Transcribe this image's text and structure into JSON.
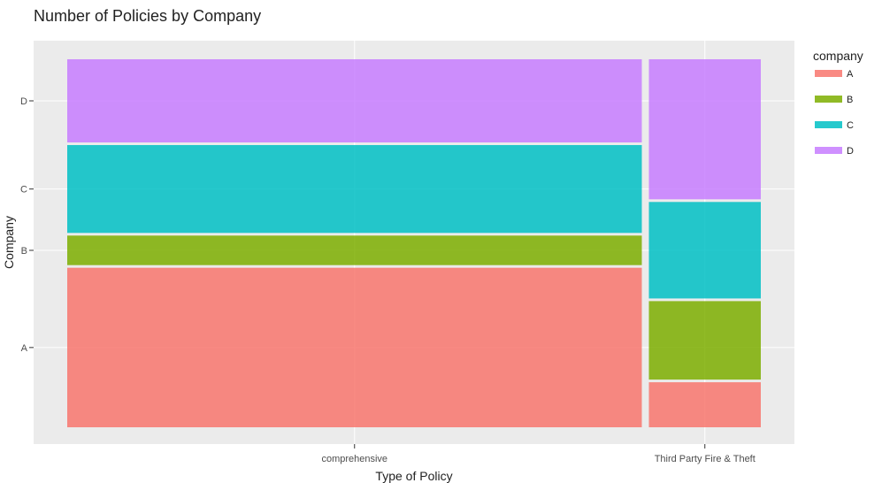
{
  "chart_data": {
    "type": "mosaic",
    "title": "Number of Policies by Company",
    "xlabel": "Type of Policy",
    "ylabel": "Company",
    "categories": [
      "comprehensive",
      "Third Party Fire & Theft"
    ],
    "x_tick_labels": [
      "comprehensive",
      "Third Party Fire & Theft"
    ],
    "y_tick_labels": [
      "A",
      "B",
      "C",
      "D"
    ],
    "column_share": [
      0.837,
      0.163
    ],
    "series": [
      {
        "name": "A",
        "color": "#F8766D",
        "values": [
          0.443,
          0.125
        ]
      },
      {
        "name": "B",
        "color": "#7CAE00",
        "values": [
          0.082,
          0.218
        ]
      },
      {
        "name": "C",
        "color": "#00BFC4",
        "values": [
          0.244,
          0.268
        ]
      },
      {
        "name": "D",
        "color": "#C77CFF",
        "values": [
          0.231,
          0.389
        ]
      }
    ],
    "legend": {
      "title": "company",
      "position": "right",
      "entries": [
        "A",
        "B",
        "C",
        "D"
      ]
    },
    "grid": true,
    "panel_background": "#EBEBEB"
  }
}
